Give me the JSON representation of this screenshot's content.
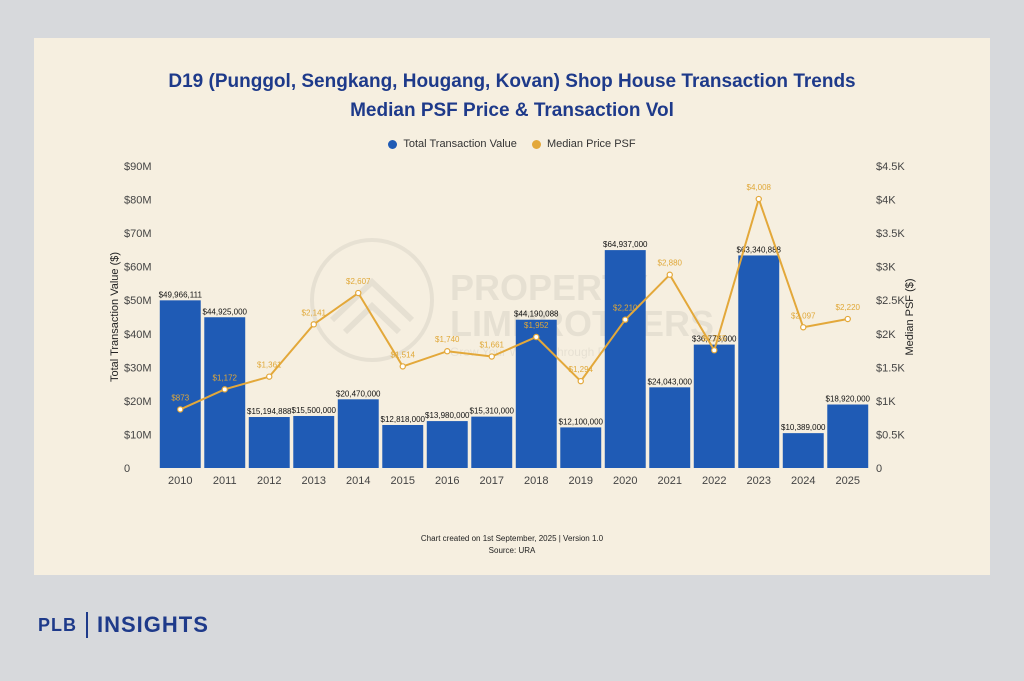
{
  "brand": {
    "left": "PLB",
    "right": "INSIGHTS"
  },
  "footer": {
    "line1": "Chart created on 1st September, 2025 | Version 1.0",
    "line2": "Source: URA"
  },
  "watermark_text": [
    "PROPERTY",
    "LIMBROTHERS",
    "Grow Your Wealth Through Property"
  ],
  "chart_data": {
    "type": "bar",
    "title": "D19 (Punggol, Sengkang, Hougang, Kovan) Shop House Transaction Trends",
    "subtitle": "Median PSF Price & Transaction Vol",
    "ylabel_left": "Total Transaction Value ($)",
    "ylabel_right": "Median PSF ($)",
    "ylim_left": [
      0,
      90000000
    ],
    "ylim_right": [
      0,
      4500
    ],
    "yticks_left": [
      "0",
      "$10M",
      "$20M",
      "$30M",
      "$40M",
      "$50M",
      "$60M",
      "$70M",
      "$80M",
      "$90M"
    ],
    "yticks_right": [
      "0",
      "$0.5K",
      "$1K",
      "$1.5K",
      "$2K",
      "$2.5K",
      "$3K",
      "$3.5K",
      "$4K",
      "$4.5K"
    ],
    "categories": [
      "2010",
      "2011",
      "2012",
      "2013",
      "2014",
      "2015",
      "2016",
      "2017",
      "2018",
      "2019",
      "2020",
      "2021",
      "2022",
      "2023",
      "2024",
      "2025"
    ],
    "series": [
      {
        "name": "Total Transaction Value",
        "type": "bar",
        "axis": "left",
        "color": "#1f5bb5",
        "values": [
          49966111,
          44925000,
          15194888,
          15500000,
          20470000,
          12818000,
          13980000,
          15310000,
          44190088,
          12100000,
          64937000,
          24043000,
          36778000,
          63340888,
          10389000,
          18920000
        ],
        "labels": [
          "$49,966,111",
          "$44,925,000",
          "$15,194,888",
          "$15,500,000",
          "$20,470,000",
          "$12,818,000",
          "$13,980,000",
          "$15,310,000",
          "$44,190,088",
          "$12,100,000",
          "$64,937,000",
          "$24,043,000",
          "$36,778,000",
          "$63,340,888",
          "$10,389,000",
          "$18,920,000"
        ]
      },
      {
        "name": "Median Price PSF",
        "type": "line",
        "axis": "right",
        "color": "#e3a83a",
        "values": [
          873,
          1172,
          1361,
          2141,
          2607,
          1514,
          1740,
          1661,
          1952,
          1294,
          2210,
          2880,
          1755,
          4008,
          2097,
          2220
        ],
        "labels": [
          "$873",
          "$1,172",
          "$1,361",
          "$2,141",
          "$2,607",
          "$1,514",
          "$1,740",
          "$1,661",
          "$1,952",
          "$1,294",
          "$2,210",
          "$2,880",
          "$1,755",
          "$4,008",
          "$2,097",
          "$2,220"
        ]
      }
    ],
    "legend_position": "top-center",
    "grid": false
  }
}
